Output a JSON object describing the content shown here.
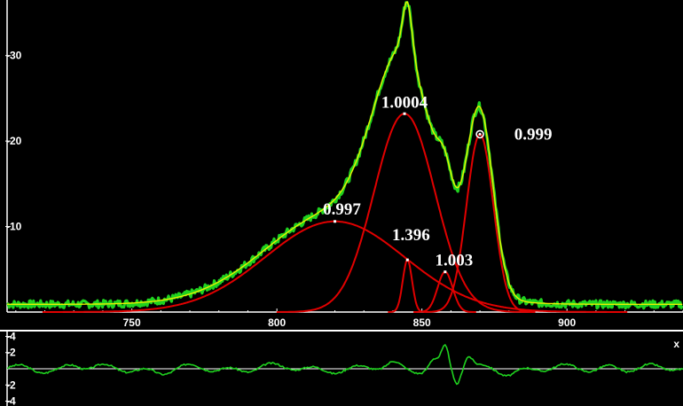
{
  "chart_data": [
    {
      "type": "line",
      "title": "",
      "xlabel": "",
      "ylabel": "",
      "xlim": [
        707,
        940
      ],
      "ylim": [
        0,
        36.5
      ],
      "grid": false,
      "legend": "none",
      "x_ticks": [
        {
          "value": 750,
          "label": "750"
        },
        {
          "value": 800,
          "label": "800"
        },
        {
          "value": 850,
          "label": "850"
        },
        {
          "value": 900,
          "label": "900"
        }
      ],
      "y_ticks": [
        {
          "value": 10,
          "label": "-10"
        },
        {
          "value": 20,
          "label": "-20"
        },
        {
          "value": 30,
          "label": "-30"
        }
      ],
      "colors": {
        "background": "#000000",
        "data": "#1fd21f",
        "envelope": "#e8f000",
        "components": "#e00000",
        "axis": "#ffffff"
      },
      "peaks": [
        {
          "center": 820,
          "height": 10.6,
          "width": 24,
          "label": "0.997"
        },
        {
          "center": 844,
          "height": 23.2,
          "width": 10.5,
          "label": "1.0004"
        },
        {
          "center": 845,
          "height": 6.1,
          "width": 1.6,
          "label": "1.396"
        },
        {
          "center": 858,
          "height": 4.7,
          "width": 2.6,
          "label": "1.003"
        },
        {
          "center": 870,
          "height": 20.8,
          "width": 4.6,
          "label": "0.999"
        }
      ]
    },
    {
      "type": "line",
      "title": "",
      "xlabel": "",
      "ylabel": "",
      "xlim": [
        707,
        940
      ],
      "ylim": [
        -4.6,
        4.6
      ],
      "y_ticks": [
        {
          "value": 4,
          "label": "-4"
        },
        {
          "value": 2,
          "label": "-2"
        },
        {
          "value": -2,
          "label": "-2"
        },
        {
          "value": -4,
          "label": "-4"
        }
      ],
      "corner_label": "x",
      "residual_bumps": [
        {
          "x": 730,
          "a": 0.45,
          "w": 2.5
        },
        {
          "x": 760,
          "a": -0.35,
          "w": 3
        },
        {
          "x": 795,
          "a": 0.3,
          "w": 3
        },
        {
          "x": 840,
          "a": 0.55,
          "w": 2
        },
        {
          "x": 854,
          "a": 1.2,
          "w": 1.6
        },
        {
          "x": 858,
          "a": 2.6,
          "w": 1.3
        },
        {
          "x": 862,
          "a": -1.8,
          "w": 1.3
        },
        {
          "x": 866,
          "a": 1.4,
          "w": 1.4
        },
        {
          "x": 880,
          "a": -0.4,
          "w": 2.5
        },
        {
          "x": 915,
          "a": 0.35,
          "w": 3
        }
      ]
    }
  ]
}
